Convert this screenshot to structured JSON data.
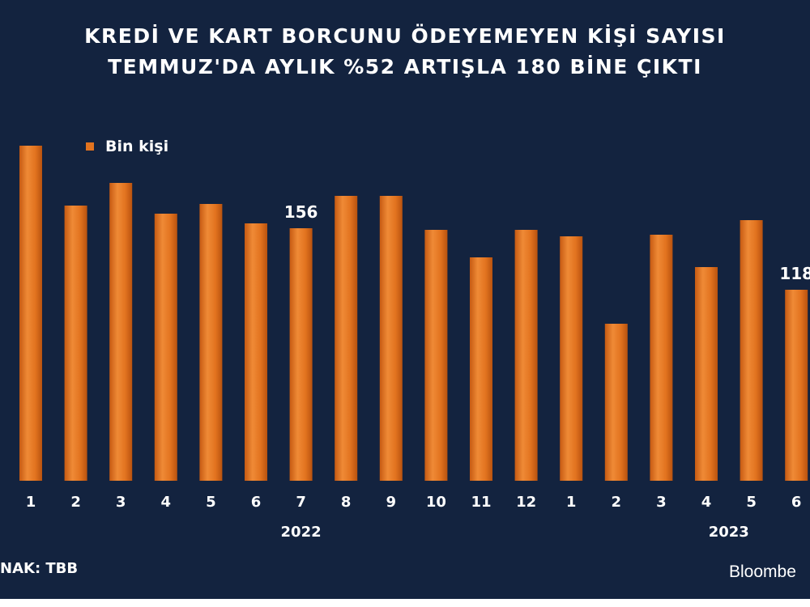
{
  "title": {
    "line1": "KREDİ VE KART BORCUNU ÖDEYEMEYEN KİŞİ SAYISI",
    "line2": "TEMMUZ'DA AYLIK %52 ARTIŞLA 180 BİNE ÇIKTI"
  },
  "legend": {
    "label": "Bin kişi"
  },
  "source": "NAK: TBB",
  "brand": "Bloombe",
  "chart_data": {
    "type": "bar",
    "categories": [
      "1",
      "2",
      "3",
      "4",
      "5",
      "6",
      "7",
      "8",
      "9",
      "10",
      "11",
      "12",
      "1",
      "2",
      "3",
      "4",
      "5",
      "6"
    ],
    "year_labels": [
      {
        "label": "2022",
        "index": 6
      },
      {
        "label": "2023",
        "index": 15.5
      }
    ],
    "series": [
      {
        "name": "Bin kişi",
        "values": [
          207,
          170,
          184,
          165,
          171,
          159,
          156,
          176,
          176,
          155,
          138,
          155,
          151,
          97,
          152,
          132,
          161,
          118
        ]
      }
    ],
    "data_labels": [
      {
        "index": 6,
        "text": "156"
      },
      {
        "index": 17,
        "text": "118"
      }
    ],
    "bar_color": "#e2731f",
    "background_color": "#13233f",
    "text_color": "#ffffff",
    "legend_position": "top-left",
    "grid": false
  }
}
